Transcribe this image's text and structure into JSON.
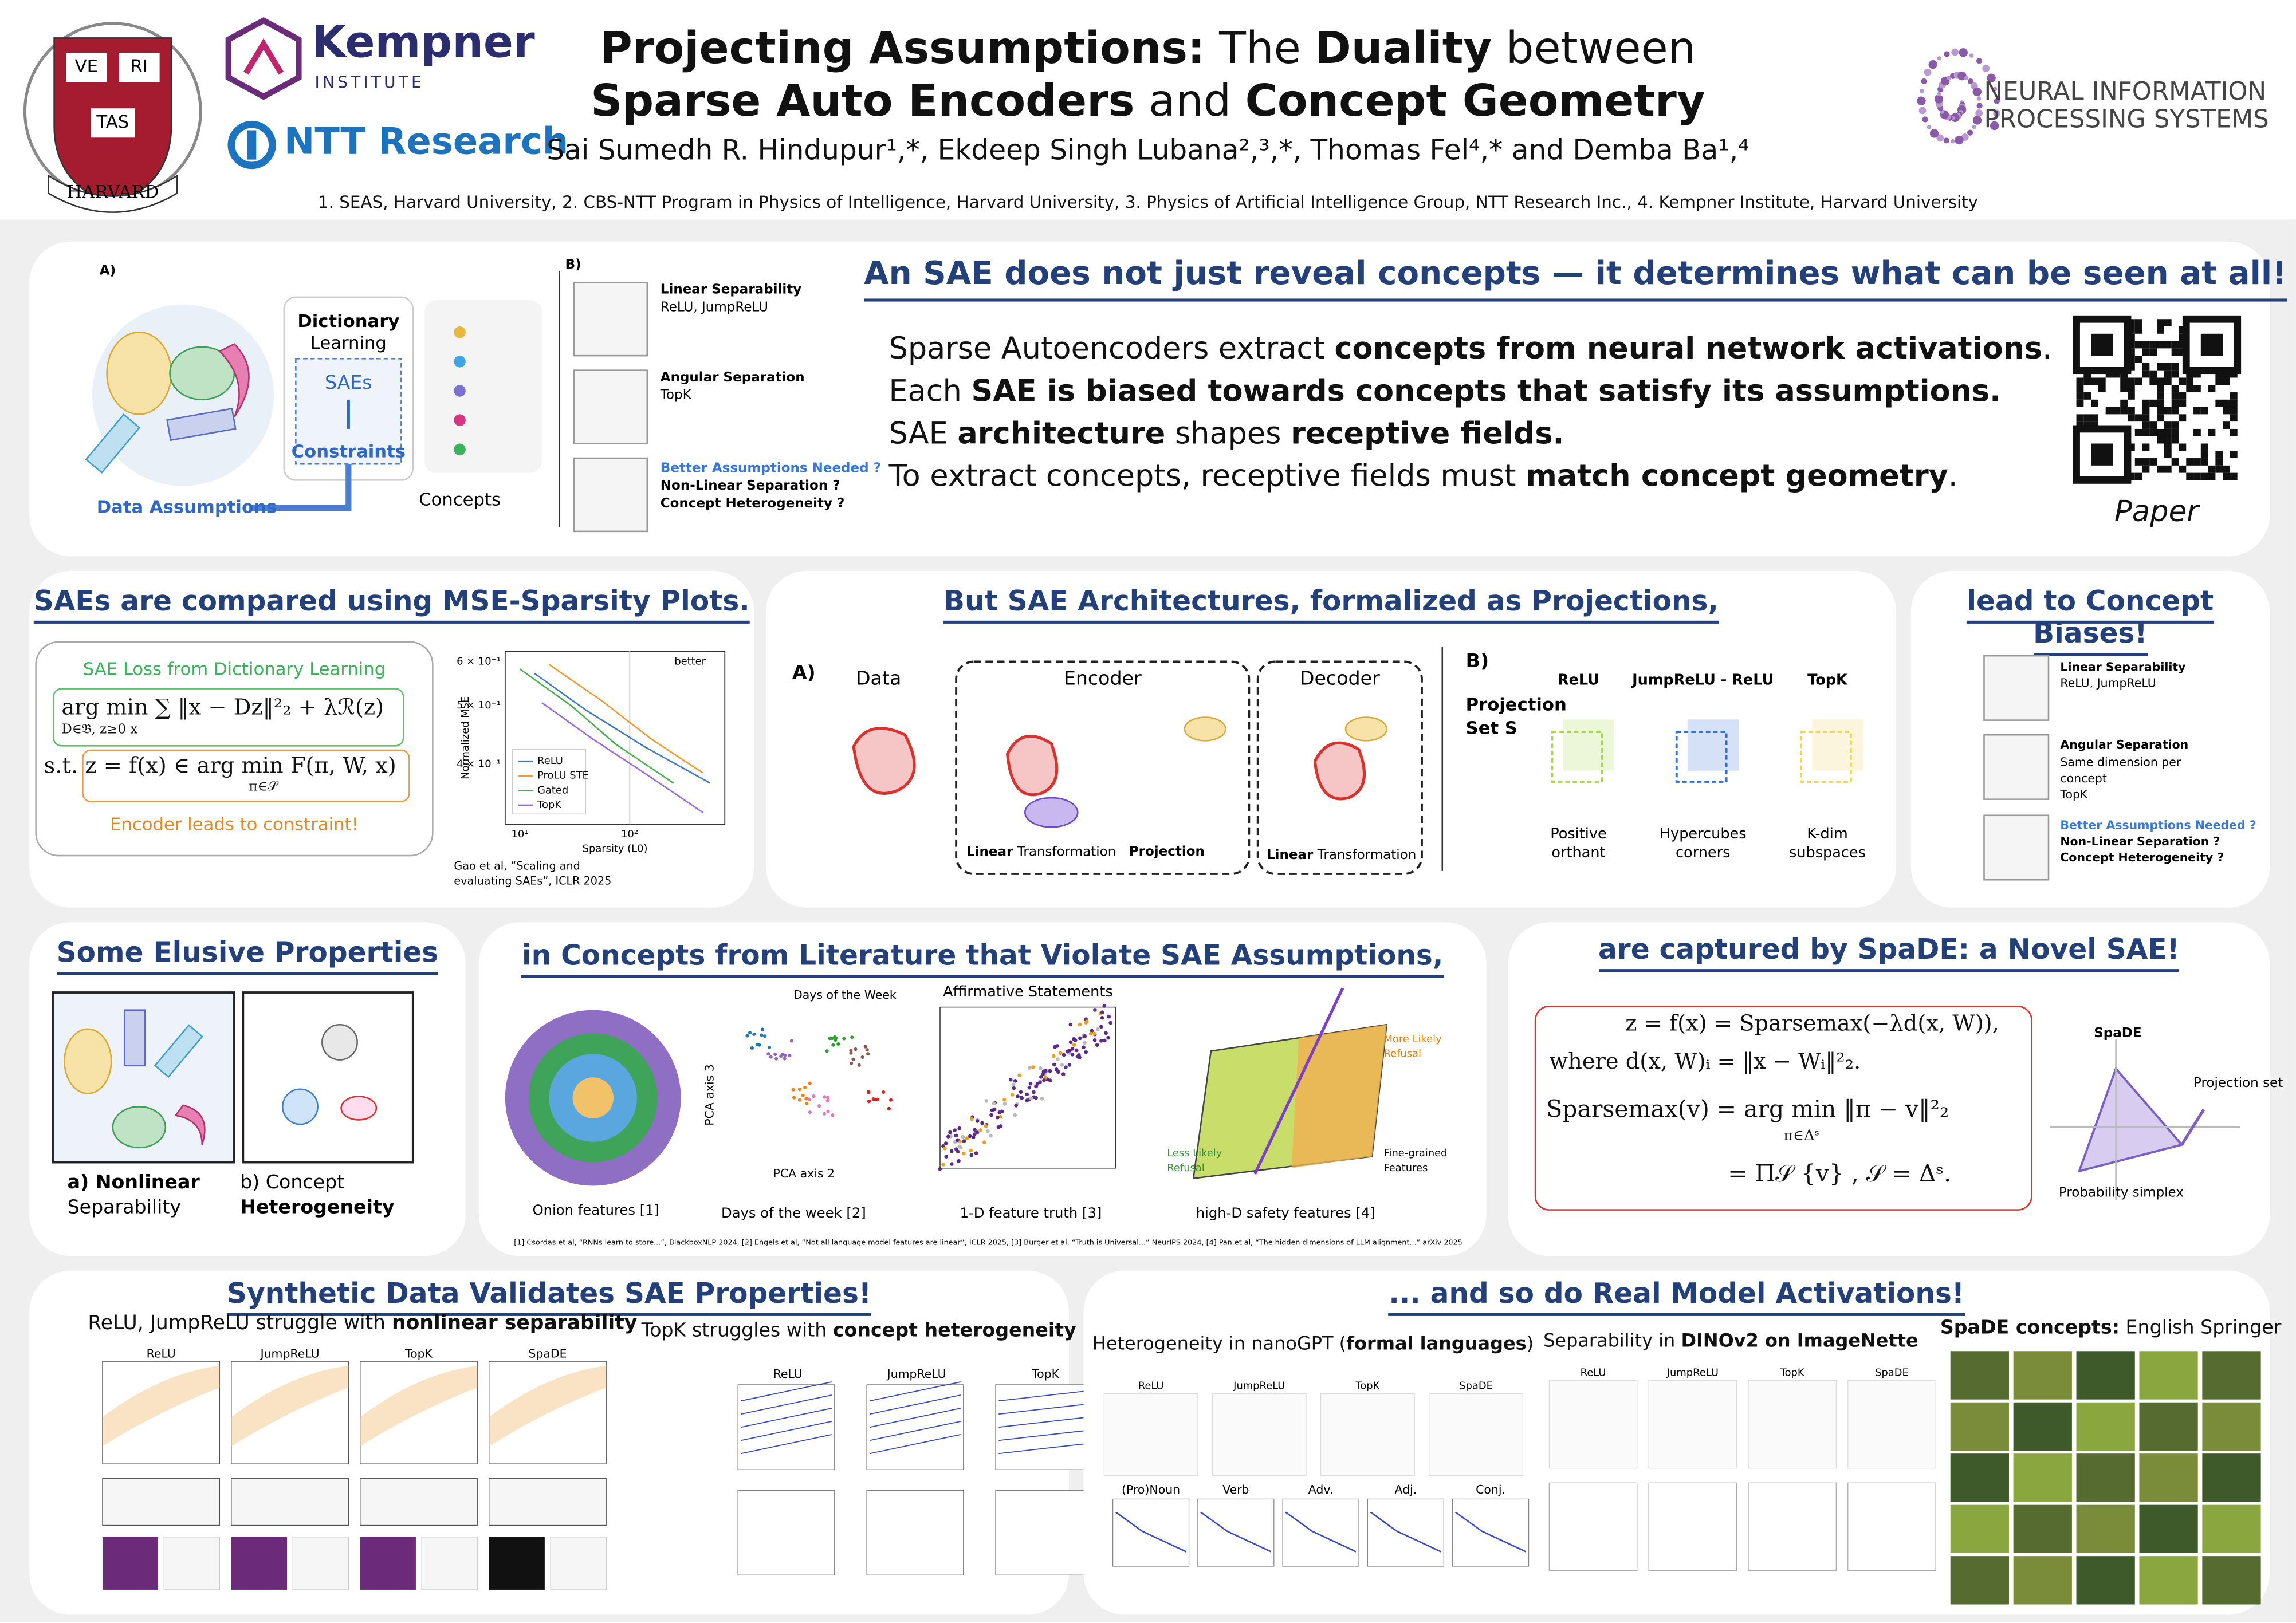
{
  "header": {
    "title_line1": [
      {
        "t": "Projecting Assumptions:",
        "b": true
      },
      {
        "t": " The "
      },
      {
        "t": "Duality",
        "b": true
      },
      {
        "t": " between"
      }
    ],
    "title_line2": [
      {
        "t": "Sparse Auto Encoders",
        "b": true
      },
      {
        "t": " and "
      },
      {
        "t": "Concept Geometry",
        "b": true
      }
    ],
    "authors": "Sai Sumedh R. Hindupur¹,*, Ekdeep Singh Lubana²,³,*, Thomas Fel⁴,* and Demba Ba¹,⁴",
    "affiliations": "1. SEAS, Harvard University, 2. CBS-NTT Program in Physics of Intelligence, Harvard University, 3. Physics of Artificial Intelligence Group, NTT Research Inc., 4. Kempner Institute, Harvard University",
    "harvard": [
      "VE",
      "RI",
      "TAS",
      "HARVARD"
    ],
    "kempner": "Kempner",
    "kempner_sub": "INSTITUTE",
    "ntt": "NTT Research",
    "neurips": [
      "NEURAL INFORMATION",
      "PROCESSING SYSTEMS"
    ]
  },
  "intro": {
    "heading": "An SAE does not just reveal concepts — it determines what can be seen at all!",
    "lines": [
      [
        {
          "t": "Sparse Autoencoders extract "
        },
        {
          "t": "concepts from neural network activations",
          "b": true
        },
        {
          "t": "."
        }
      ],
      [
        {
          "t": "Each "
        },
        {
          "t": "SAE is biased towards concepts that satisfy its assumptions.",
          "b": true
        }
      ],
      [
        {
          "t": "SAE "
        },
        {
          "t": "architecture",
          "b": true
        },
        {
          "t": " shapes "
        },
        {
          "t": "receptive fields.",
          "b": true
        }
      ],
      [
        {
          "t": "To extract concepts, receptive fields must "
        },
        {
          "t": "match concept geometry",
          "b": true
        },
        {
          "t": "."
        }
      ]
    ],
    "qr_caption": "Paper",
    "fig_a": {
      "label": "A)",
      "dict": "Dictionary",
      "learning": "Learning",
      "saes": "SAEs",
      "constraints": "Constraints",
      "concepts": "Concepts",
      "assumptions": "Data Assumptions"
    },
    "fig_b": {
      "label": "B)",
      "lin": "Linear Separability",
      "lin_sub": "ReLU, JumpReLU",
      "ang": "Angular Separation",
      "ang_sub": "TopK",
      "better": "Better Assumptions Needed ?",
      "nonlin": "Non-Linear Separation ?",
      "hetero": "Concept Heterogeneity ?"
    }
  },
  "mse": {
    "title": "SAEs are compared using MSE-Sparsity Plots.",
    "loss_title": "SAE Loss from Dictionary Learning",
    "f1": "arg min  ∑ ‖x − Dz‖²₂ + λℛ(z)",
    "f1_sub": "D∈𝔅, z≥0   x",
    "f2": "s.t.  z = f(x) ∈ arg min F(π, W, x)",
    "f2_sub": "π∈𝒮",
    "constraint": "Encoder leads to constraint!",
    "legend": [
      "ReLU",
      "ProLU STE",
      "Gated",
      "TopK"
    ],
    "better": "better",
    "xlabel": "Sparsity (L0)",
    "ylabel": "Normalized MSE",
    "yticks": [
      "6 × 10⁻¹",
      "5 × 10⁻¹",
      "4 × 10⁻¹"
    ],
    "xticks": [
      "10¹",
      "10²"
    ],
    "cite": [
      "Gao et al, “Scaling and",
      "evaluating SAEs”, ICLR 2025"
    ]
  },
  "proj": {
    "title": "But SAE Architectures, formalized as Projections,",
    "a": "A)",
    "data": "Data",
    "encoder": "Encoder",
    "decoder": "Decoder",
    "lt": [
      {
        "t": "Linear",
        "b": true
      },
      {
        "t": " Transformation"
      }
    ],
    "projection": "Projection",
    "b": "B)",
    "set": [
      "Projection",
      "Set S"
    ],
    "cols": [
      "ReLU",
      "JumpReLU - ReLU",
      "TopK"
    ],
    "caps": [
      [
        "Positive",
        "orthant"
      ],
      [
        "Hypercubes",
        "corners"
      ],
      [
        "K-dim",
        "subspaces"
      ]
    ]
  },
  "bias": {
    "title": "lead to Concept Biases!",
    "lin": "Linear Separability",
    "lin_sub": "ReLU, JumpReLU",
    "ang": "Angular Separation",
    "ang_sub": [
      "Same dimension per",
      "concept",
      "TopK"
    ],
    "better": "Better Assumptions Needed ?",
    "nonlin": "Non-Linear Separation ?",
    "hetero": "Concept Heterogeneity ?"
  },
  "elusive": {
    "title": "Some Elusive Properties",
    "a": [
      "a) Nonlinear",
      "Separability"
    ],
    "b": [
      "b) Concept",
      "Heterogeneity"
    ]
  },
  "lit": {
    "title": "in Concepts from Literature that Violate SAE Assumptions,",
    "captions": [
      "Onion features [1]",
      "Days of the week [2]",
      "1-D feature truth [3]",
      "high-D safety features [4]"
    ],
    "days": "Days of the Week",
    "affirm": "Affirmative Statements",
    "pca3": "PCA axis 3",
    "pca2": "PCA axis 2",
    "more": [
      "More Likely",
      "Refusal"
    ],
    "less": [
      "Less Likely",
      "Refusal"
    ],
    "fine": [
      "Fine-grained",
      "Features"
    ],
    "refs": "[1] Csordas et al, “RNNs learn to store...”, BlackboxNLP 2024, [2] Engels et al, “Not all language model features are linear”, ICLR 2025, [3] Burger et al, “Truth is Universal...” NeurIPS 2024, [4] Pan et al, “The hidden dimensions of LLM alignment...” arXiv 2025"
  },
  "spade": {
    "title": "are captured by SpaDE: a Novel SAE!",
    "f": [
      "z = f(x) = Sparsemax(−λd(x, W)),",
      "where d(x, W)ᵢ = ‖x − Wᵢ‖²₂.",
      "Sparsemax(v) = arg min ‖π − v‖²₂",
      "π∈Δˢ",
      "= Π𝒮 {v} ,  𝒮 = Δˢ."
    ],
    "name": "SpaDE",
    "pset": "Projection set",
    "simplex": "Probability simplex"
  },
  "synth": {
    "title": "Synthetic Data Validates SAE Properties!",
    "left": [
      {
        "t": "ReLU, JumpReLU struggle with "
      },
      {
        "t": "nonlinear separability",
        "b": true
      }
    ],
    "right": [
      {
        "t": "TopK struggles with "
      },
      {
        "t": "concept heterogeneity",
        "b": true
      }
    ],
    "cols": [
      "ReLU",
      "JumpReLU",
      "TopK",
      "SpaDE"
    ]
  },
  "real": {
    "title": "... and so do Real Model Activations!",
    "het": [
      {
        "t": "Heterogeneity in nanoGPT ("
      },
      {
        "t": "formal languages",
        "b": true
      },
      {
        "t": ")"
      }
    ],
    "sep": [
      {
        "t": "Separability in "
      },
      {
        "t": "DINOv2 on ImageNette",
        "b": true
      }
    ],
    "concepts": [
      {
        "t": "SpaDE concepts:",
        "b": true
      },
      {
        "t": " English Springer"
      }
    ],
    "pos": [
      "(Pro)Noun",
      "Verb",
      "Adv.",
      "Adj.",
      "Conj."
    ],
    "cols": [
      "ReLU",
      "JumpReLU",
      "TopK",
      "SpaDE"
    ]
  }
}
